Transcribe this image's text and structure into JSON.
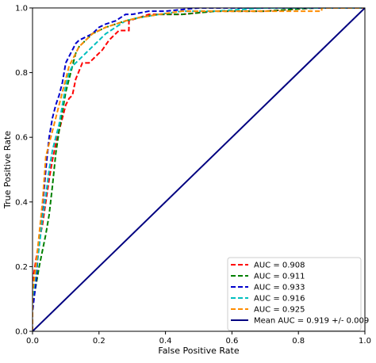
{
  "chart_data": {
    "type": "line",
    "title": "",
    "xlabel": "False Positive Rate",
    "ylabel": "True Positive Rate",
    "xlim": [
      0.0,
      1.0
    ],
    "ylim": [
      0.0,
      1.0
    ],
    "xticks": [
      "0.0",
      "0.2",
      "0.4",
      "0.6",
      "0.8",
      "1.0"
    ],
    "yticks": [
      "0.0",
      "0.2",
      "0.4",
      "0.6",
      "0.8",
      "1.0"
    ],
    "grid": false,
    "legend_position": "lower-right",
    "series": [
      {
        "name": "AUC = 0.908",
        "color": "#ff0000",
        "dash": "dashed",
        "x": [
          0.0,
          0.0,
          0.01,
          0.02,
          0.03,
          0.04,
          0.05,
          0.06,
          0.07,
          0.08,
          0.09,
          0.1,
          0.11,
          0.12,
          0.13,
          0.15,
          0.17,
          0.19,
          0.21,
          0.23,
          0.26,
          0.29,
          0.29,
          0.35,
          0.45,
          0.55,
          0.7,
          0.85,
          1.0
        ],
        "y": [
          0.0,
          0.15,
          0.22,
          0.28,
          0.33,
          0.4,
          0.47,
          0.53,
          0.58,
          0.62,
          0.66,
          0.7,
          0.72,
          0.73,
          0.78,
          0.83,
          0.83,
          0.85,
          0.87,
          0.9,
          0.93,
          0.93,
          0.96,
          0.98,
          0.98,
          0.99,
          0.99,
          1.0,
          1.0
        ]
      },
      {
        "name": "AUC = 0.911",
        "color": "#008000",
        "dash": "dashed",
        "x": [
          0.0,
          0.0,
          0.01,
          0.02,
          0.03,
          0.04,
          0.05,
          0.06,
          0.07,
          0.08,
          0.09,
          0.1,
          0.11,
          0.12,
          0.13,
          0.14,
          0.16,
          0.18,
          0.2,
          0.22,
          0.25,
          0.28,
          0.32,
          0.38,
          0.45,
          0.55,
          0.7,
          0.85,
          1.0
        ],
        "y": [
          0.0,
          0.08,
          0.14,
          0.2,
          0.25,
          0.3,
          0.36,
          0.45,
          0.55,
          0.62,
          0.68,
          0.74,
          0.78,
          0.82,
          0.86,
          0.88,
          0.9,
          0.92,
          0.93,
          0.94,
          0.95,
          0.96,
          0.97,
          0.98,
          0.98,
          0.99,
          0.99,
          1.0,
          1.0
        ]
      },
      {
        "name": "AUC = 0.933",
        "color": "#0000cc",
        "dash": "dashed",
        "x": [
          0.0,
          0.0,
          0.01,
          0.02,
          0.03,
          0.04,
          0.05,
          0.06,
          0.07,
          0.08,
          0.09,
          0.1,
          0.11,
          0.12,
          0.13,
          0.14,
          0.16,
          0.18,
          0.2,
          0.22,
          0.25,
          0.28,
          0.3,
          0.35,
          0.4,
          0.5,
          0.6,
          0.8,
          1.0
        ],
        "y": [
          0.0,
          0.06,
          0.15,
          0.28,
          0.38,
          0.5,
          0.6,
          0.66,
          0.7,
          0.73,
          0.77,
          0.83,
          0.85,
          0.87,
          0.89,
          0.9,
          0.91,
          0.92,
          0.94,
          0.95,
          0.96,
          0.98,
          0.98,
          0.99,
          0.99,
          1.0,
          1.0,
          1.0,
          1.0
        ]
      },
      {
        "name": "AUC = 0.916",
        "color": "#00bfbf",
        "dash": "dashed",
        "x": [
          0.0,
          0.0,
          0.01,
          0.02,
          0.03,
          0.04,
          0.05,
          0.06,
          0.07,
          0.08,
          0.09,
          0.1,
          0.11,
          0.12,
          0.14,
          0.16,
          0.18,
          0.2,
          0.22,
          0.25,
          0.28,
          0.32,
          0.38,
          0.45,
          0.55,
          0.7,
          0.85,
          1.0
        ],
        "y": [
          0.0,
          0.1,
          0.18,
          0.26,
          0.35,
          0.42,
          0.5,
          0.56,
          0.6,
          0.64,
          0.7,
          0.76,
          0.8,
          0.82,
          0.84,
          0.86,
          0.88,
          0.9,
          0.92,
          0.94,
          0.96,
          0.97,
          0.98,
          0.99,
          0.99,
          1.0,
          1.0,
          1.0
        ]
      },
      {
        "name": "AUC = 0.925",
        "color": "#ff8c00",
        "dash": "dashed",
        "x": [
          0.0,
          0.0,
          0.01,
          0.02,
          0.03,
          0.04,
          0.05,
          0.06,
          0.07,
          0.08,
          0.09,
          0.1,
          0.11,
          0.12,
          0.13,
          0.14,
          0.16,
          0.18,
          0.2,
          0.22,
          0.25,
          0.28,
          0.32,
          0.38,
          0.45,
          0.55,
          0.7,
          0.87,
          0.87,
          1.0
        ],
        "y": [
          0.0,
          0.12,
          0.2,
          0.3,
          0.4,
          0.54,
          0.58,
          0.62,
          0.66,
          0.7,
          0.74,
          0.78,
          0.82,
          0.84,
          0.86,
          0.88,
          0.9,
          0.92,
          0.93,
          0.94,
          0.95,
          0.96,
          0.97,
          0.98,
          0.99,
          0.99,
          0.99,
          0.99,
          1.0,
          1.0
        ]
      },
      {
        "name": "Mean AUC = 0.919 +/- 0.009",
        "color": "#000080",
        "dash": "solid",
        "x": [
          0.0,
          1.0
        ],
        "y": [
          0.0,
          1.0
        ]
      }
    ]
  }
}
